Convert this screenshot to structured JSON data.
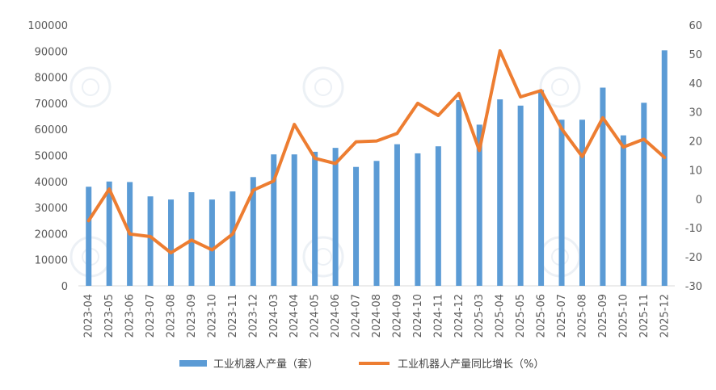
{
  "chart_data": {
    "type": "bar+line",
    "title": "",
    "categories": [
      "2023-04",
      "2023-05",
      "2023-06",
      "2023-07",
      "2023-08",
      "2023-09",
      "2023-10",
      "2023-11",
      "2023-12",
      "2024-03",
      "2024-04",
      "2024-05",
      "2024-06",
      "2024-07",
      "2024-08",
      "2024-09",
      "2024-10",
      "2024-11",
      "2024-12",
      "2025-03",
      "2025-04",
      "2025-05",
      "2025-06",
      "2025-07",
      "2025-08",
      "2025-09",
      "2025-10",
      "2025-11",
      "2025-12"
    ],
    "series": [
      {
        "name": "工业机器人产量（套）",
        "type": "bar",
        "axis": "left",
        "color": "#5B9BD5",
        "values": [
          38000,
          40000,
          39800,
          34300,
          33100,
          35900,
          33100,
          36200,
          41700,
          50400,
          50400,
          51400,
          52900,
          45600,
          47900,
          54300,
          50800,
          53500,
          71200,
          61800,
          71500,
          69100,
          75100,
          63700,
          63700,
          76000,
          57700,
          70200,
          90300
        ]
      },
      {
        "name": "工业机器人产量同比增长（%）",
        "type": "line",
        "axis": "right",
        "color": "#ED7D31",
        "values": [
          -7.5,
          3.4,
          -12.1,
          -13.0,
          -18.6,
          -14.2,
          -17.6,
          -12.1,
          3.0,
          6.2,
          25.7,
          14.0,
          12.2,
          19.7,
          20.0,
          22.6,
          33.0,
          28.8,
          36.4,
          16.7,
          51.1,
          35.2,
          37.4,
          24.2,
          14.6,
          28.0,
          17.9,
          20.6,
          14.3
        ]
      }
    ],
    "y_left": {
      "min": 0,
      "max": 100000,
      "step": 10000,
      "ticks": [
        "0",
        "10000",
        "20000",
        "30000",
        "40000",
        "50000",
        "60000",
        "70000",
        "80000",
        "90000",
        "100000"
      ]
    },
    "y_right": {
      "min": -30,
      "max": 60,
      "step": 10,
      "ticks": [
        "-30",
        "-20",
        "-10",
        "0",
        "10",
        "20",
        "30",
        "40",
        "50",
        "60"
      ]
    },
    "xlabel": "",
    "ylabel": "",
    "grid": false,
    "legend": "bottom"
  }
}
